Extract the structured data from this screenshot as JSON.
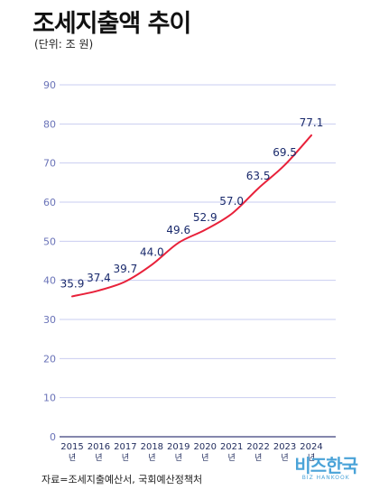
{
  "header": {
    "title": "조세지출액 추이",
    "unit": "(단위: 조 원)"
  },
  "footer": {
    "source": "자료=조세지출예산서, 국회예산정책처",
    "logo": "비즈한국",
    "logo_sub": "BIZ HANKOOK"
  },
  "colors": {
    "line": "#e8213a",
    "label": "#1a2a6c",
    "grid": "#c9cdf0",
    "axis_tick": "#6a73b8"
  },
  "chart_data": {
    "type": "line",
    "categories": [
      "2015",
      "2016",
      "2017",
      "2018",
      "2019",
      "2020",
      "2021",
      "2022",
      "2023",
      "2024"
    ],
    "category_suffix": "년",
    "values": [
      35.9,
      37.4,
      39.7,
      44.0,
      49.6,
      52.9,
      57.0,
      63.5,
      69.5,
      77.1
    ],
    "value_labels": [
      "35.9",
      "37.4",
      "39.7",
      "44.0",
      "49.6",
      "52.9",
      "57.0",
      "63.5",
      "69.5",
      "77.1"
    ],
    "yticks": [
      "0",
      "10",
      "20",
      "30",
      "40",
      "50",
      "60",
      "70",
      "80",
      "90"
    ],
    "ylim": [
      0,
      90
    ],
    "grid": true
  }
}
